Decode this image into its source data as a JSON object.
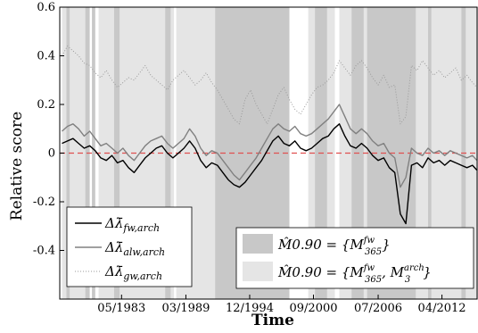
{
  "chart_data": {
    "type": "line",
    "xlabel": "Time",
    "ylabel": "Relative score",
    "ylim": [
      -0.6,
      0.6
    ],
    "y_ticks": [
      "0.6",
      "0.4",
      "0.2",
      "0",
      "-0.2",
      "-0.4"
    ],
    "y_tick_values": [
      0.6,
      0.4,
      0.2,
      0,
      -0.2,
      -0.4
    ],
    "x_ticks": [
      "05/1983",
      "03/1989",
      "12/1994",
      "09/2000",
      "07/2006",
      "04/2012"
    ],
    "x_tick_values": [
      1983.37,
      1989.17,
      1994.92,
      2000.67,
      2006.5,
      2012.25
    ],
    "xlim": [
      1977.8,
      2015.5
    ],
    "reference_line": {
      "y": 0,
      "color": "#e05050",
      "style": "dashed"
    },
    "series": [
      {
        "name": "Δλ̄fw,arch",
        "legend_main": "Δλ̄",
        "legend_sub": "fw,arch",
        "color": "#000000",
        "style": "solid",
        "x": [
          1978.0,
          1978.5,
          1979.0,
          1979.5,
          1980.0,
          1980.5,
          1981.0,
          1981.5,
          1982.0,
          1982.5,
          1983.0,
          1983.5,
          1984.0,
          1984.5,
          1985.0,
          1985.5,
          1986.0,
          1986.5,
          1987.0,
          1987.5,
          1988.0,
          1988.5,
          1989.0,
          1989.5,
          1990.0,
          1990.5,
          1991.0,
          1991.5,
          1992.0,
          1992.5,
          1993.0,
          1993.5,
          1994.0,
          1994.5,
          1995.0,
          1995.5,
          1996.0,
          1996.5,
          1997.0,
          1997.5,
          1998.0,
          1998.5,
          1999.0,
          1999.5,
          2000.0,
          2000.5,
          2001.0,
          2001.5,
          2002.0,
          2002.5,
          2003.0,
          2003.5,
          2004.0,
          2004.5,
          2005.0,
          2005.5,
          2006.0,
          2006.5,
          2007.0,
          2007.5,
          2008.0,
          2008.5,
          2009.0,
          2009.5,
          2010.0,
          2010.5,
          2011.0,
          2011.5,
          2012.0,
          2012.5,
          2013.0,
          2013.5,
          2014.0,
          2014.5,
          2015.0,
          2015.4
        ],
        "values": [
          0.04,
          0.05,
          0.06,
          0.04,
          0.02,
          0.03,
          0.01,
          -0.02,
          -0.03,
          -0.01,
          -0.04,
          -0.03,
          -0.06,
          -0.08,
          -0.05,
          -0.02,
          0.0,
          0.02,
          0.03,
          0.0,
          -0.02,
          0.0,
          0.02,
          0.05,
          0.02,
          -0.03,
          -0.06,
          -0.04,
          -0.05,
          -0.08,
          -0.11,
          -0.13,
          -0.14,
          -0.12,
          -0.09,
          -0.06,
          -0.03,
          0.01,
          0.05,
          0.07,
          0.04,
          0.03,
          0.05,
          0.02,
          0.01,
          0.02,
          0.04,
          0.06,
          0.07,
          0.1,
          0.12,
          0.07,
          0.03,
          0.02,
          0.04,
          0.02,
          -0.01,
          -0.03,
          -0.02,
          -0.06,
          -0.08,
          -0.25,
          -0.29,
          -0.05,
          -0.04,
          -0.06,
          -0.02,
          -0.04,
          -0.03,
          -0.05,
          -0.03,
          -0.04,
          -0.05,
          -0.06,
          -0.05,
          -0.07
        ]
      },
      {
        "name": "Δλ̄alw,arch",
        "legend_main": "Δλ̄",
        "legend_sub": "alw,arch",
        "color": "#808080",
        "style": "solid",
        "x": [
          1978.0,
          1978.5,
          1979.0,
          1979.5,
          1980.0,
          1980.5,
          1981.0,
          1981.5,
          1982.0,
          1982.5,
          1983.0,
          1983.5,
          1984.0,
          1984.5,
          1985.0,
          1985.5,
          1986.0,
          1986.5,
          1987.0,
          1987.5,
          1988.0,
          1988.5,
          1989.0,
          1989.5,
          1990.0,
          1990.5,
          1991.0,
          1991.5,
          1992.0,
          1992.5,
          1993.0,
          1993.5,
          1994.0,
          1994.5,
          1995.0,
          1995.5,
          1996.0,
          1996.5,
          1997.0,
          1997.5,
          1998.0,
          1998.5,
          1999.0,
          1999.5,
          2000.0,
          2000.5,
          2001.0,
          2001.5,
          2002.0,
          2002.5,
          2003.0,
          2003.5,
          2004.0,
          2004.5,
          2005.0,
          2005.5,
          2006.0,
          2006.5,
          2007.0,
          2007.5,
          2008.0,
          2008.5,
          2009.0,
          2009.5,
          2010.0,
          2010.5,
          2011.0,
          2011.5,
          2012.0,
          2012.5,
          2013.0,
          2013.5,
          2014.0,
          2014.5,
          2015.0,
          2015.4
        ],
        "values": [
          0.09,
          0.11,
          0.12,
          0.1,
          0.07,
          0.09,
          0.06,
          0.03,
          0.04,
          0.02,
          0.0,
          0.02,
          -0.01,
          -0.03,
          0.0,
          0.03,
          0.05,
          0.06,
          0.07,
          0.04,
          0.02,
          0.04,
          0.06,
          0.1,
          0.07,
          0.02,
          -0.01,
          0.01,
          0.0,
          -0.03,
          -0.06,
          -0.09,
          -0.11,
          -0.08,
          -0.05,
          -0.02,
          0.02,
          0.06,
          0.1,
          0.12,
          0.1,
          0.09,
          0.11,
          0.08,
          0.07,
          0.08,
          0.1,
          0.12,
          0.14,
          0.17,
          0.2,
          0.15,
          0.1,
          0.08,
          0.1,
          0.08,
          0.05,
          0.03,
          0.04,
          0.0,
          -0.02,
          -0.14,
          -0.1,
          0.02,
          0.0,
          -0.01,
          0.02,
          0.0,
          0.01,
          -0.01,
          0.01,
          0.0,
          -0.01,
          -0.02,
          -0.01,
          -0.03
        ]
      },
      {
        "name": "Δλ̄gw,arch",
        "legend_main": "Δλ̄",
        "legend_sub": "gw,arch",
        "color": "#9a9a9a",
        "style": "dotted",
        "x": [
          1978.0,
          1978.5,
          1979.0,
          1979.5,
          1980.0,
          1980.5,
          1981.0,
          1981.5,
          1982.0,
          1982.5,
          1983.0,
          1983.5,
          1984.0,
          1984.5,
          1985.0,
          1985.5,
          1986.0,
          1986.5,
          1987.0,
          1987.5,
          1988.0,
          1988.5,
          1989.0,
          1989.5,
          1990.0,
          1990.5,
          1991.0,
          1991.5,
          1992.0,
          1992.5,
          1993.0,
          1993.5,
          1994.0,
          1994.5,
          1995.0,
          1995.5,
          1996.0,
          1996.5,
          1997.0,
          1997.5,
          1998.0,
          1998.5,
          1999.0,
          1999.5,
          2000.0,
          2000.5,
          2001.0,
          2001.5,
          2002.0,
          2002.5,
          2003.0,
          2003.5,
          2004.0,
          2004.5,
          2005.0,
          2005.5,
          2006.0,
          2006.5,
          2007.0,
          2007.5,
          2008.0,
          2008.5,
          2009.0,
          2009.5,
          2010.0,
          2010.5,
          2011.0,
          2011.5,
          2012.0,
          2012.5,
          2013.0,
          2013.5,
          2014.0,
          2014.5,
          2015.0,
          2015.4
        ],
        "values": [
          0.4,
          0.44,
          0.42,
          0.4,
          0.37,
          0.36,
          0.33,
          0.31,
          0.34,
          0.3,
          0.27,
          0.29,
          0.31,
          0.3,
          0.33,
          0.36,
          0.32,
          0.3,
          0.28,
          0.26,
          0.3,
          0.32,
          0.34,
          0.31,
          0.28,
          0.3,
          0.33,
          0.29,
          0.26,
          0.22,
          0.18,
          0.14,
          0.12,
          0.22,
          0.26,
          0.2,
          0.16,
          0.12,
          0.18,
          0.24,
          0.27,
          0.22,
          0.18,
          0.16,
          0.2,
          0.24,
          0.27,
          0.28,
          0.3,
          0.33,
          0.38,
          0.35,
          0.32,
          0.36,
          0.38,
          0.35,
          0.31,
          0.28,
          0.32,
          0.27,
          0.28,
          0.12,
          0.15,
          0.36,
          0.34,
          0.38,
          0.35,
          0.32,
          0.34,
          0.31,
          0.33,
          0.35,
          0.3,
          0.32,
          0.29,
          0.27
        ]
      }
    ],
    "shading": {
      "dark_color": "#c8c8c8",
      "light_color": "#e5e5e5",
      "dark_label_lhs": "M̂0.90 = {M",
      "dark_label_sup1": "fw",
      "dark_label_sub1": "365",
      "dark_label_rhs": "}",
      "light_label_lhs": "M̂0.90 = {M",
      "light_label_sup1": "fw",
      "light_label_sub1": "365",
      "light_label_mid": ", M",
      "light_label_sup2": "arch",
      "light_label_sub2": "3",
      "light_label_rhs": "}",
      "light_bands": [
        [
          1978.0,
          1978.4
        ],
        [
          1978.7,
          1980.1
        ],
        [
          1981.3,
          1982.7
        ],
        [
          1983.2,
          1987.3
        ],
        [
          1987.8,
          1988.1
        ],
        [
          1988.3,
          1991.8
        ],
        [
          2000.2,
          2000.8
        ],
        [
          2001.9,
          2002.6
        ],
        [
          2003.0,
          2004.1
        ],
        [
          2005.2,
          2005.5
        ],
        [
          2009.9,
          2011.0
        ],
        [
          2011.3,
          2014.0
        ],
        [
          2014.4,
          2015.5
        ]
      ],
      "dark_bands": [
        [
          1978.4,
          1978.7
        ],
        [
          1980.1,
          1980.5
        ],
        [
          1980.7,
          1981.0
        ],
        [
          1982.7,
          1983.2
        ],
        [
          1987.3,
          1987.8
        ],
        [
          1991.8,
          1998.5
        ],
        [
          2000.8,
          2001.9
        ],
        [
          2004.1,
          2005.2
        ],
        [
          2005.5,
          2009.9
        ],
        [
          2011.0,
          2011.3
        ],
        [
          2014.0,
          2014.4
        ]
      ]
    }
  }
}
